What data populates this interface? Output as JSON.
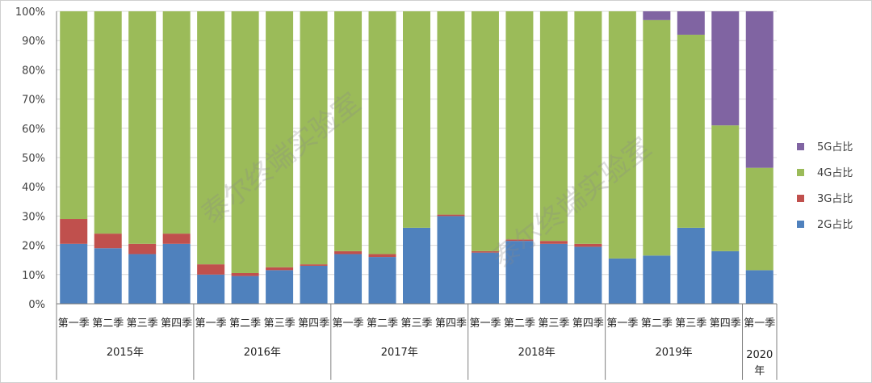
{
  "chart_data": {
    "type": "bar",
    "stacked": true,
    "percent": true,
    "categories": [
      "第一季",
      "第二季",
      "第三季",
      "第四季",
      "第一季",
      "第二季",
      "第三季",
      "第四季",
      "第一季",
      "第二季",
      "第三季",
      "第四季",
      "第一季",
      "第二季",
      "第三季",
      "第四季",
      "第一季",
      "第二季",
      "第三季",
      "第四季",
      "第一季"
    ],
    "groups": [
      {
        "label": "2015年",
        "count": 4
      },
      {
        "label": "2016年",
        "count": 4
      },
      {
        "label": "2017年",
        "count": 4
      },
      {
        "label": "2018年",
        "count": 4
      },
      {
        "label": "2019年",
        "count": 4
      },
      {
        "label": "2020年",
        "count": 1
      }
    ],
    "series": [
      {
        "name": "2G占比",
        "color": "#4f81bd",
        "values": [
          20.5,
          19,
          17,
          20.5,
          10,
          9.5,
          11.5,
          13,
          17,
          16,
          26,
          30,
          17.5,
          21.5,
          20.5,
          19.5,
          15.5,
          16.5,
          26,
          18,
          11.5
        ]
      },
      {
        "name": "3G占比",
        "color": "#c0504d",
        "values": [
          8.5,
          5,
          3.5,
          3.5,
          3.5,
          1,
          1,
          0.5,
          1,
          1,
          0,
          0.5,
          0.5,
          0.5,
          1,
          1,
          0,
          0,
          0,
          0,
          0
        ]
      },
      {
        "name": "4G占比",
        "color": "#9bbb59",
        "values": [
          71,
          76,
          79.5,
          76,
          86.5,
          89.5,
          87.5,
          86.5,
          82,
          83,
          74,
          69.5,
          82,
          78,
          78.5,
          79.5,
          84.5,
          80.5,
          66,
          43,
          35
        ]
      },
      {
        "name": "5G占比",
        "color": "#8064a2",
        "values": [
          0,
          0,
          0,
          0,
          0,
          0,
          0,
          0,
          0,
          0,
          0,
          0,
          0,
          0,
          0,
          0,
          0,
          3,
          8,
          39,
          53.5
        ]
      }
    ],
    "ylim": [
      0,
      100
    ],
    "yticks": [
      "0%",
      "10%",
      "20%",
      "30%",
      "40%",
      "50%",
      "60%",
      "70%",
      "80%",
      "90%",
      "100%"
    ],
    "legend_position": "right",
    "grid": true
  },
  "watermark": "泰尔终端实验室"
}
